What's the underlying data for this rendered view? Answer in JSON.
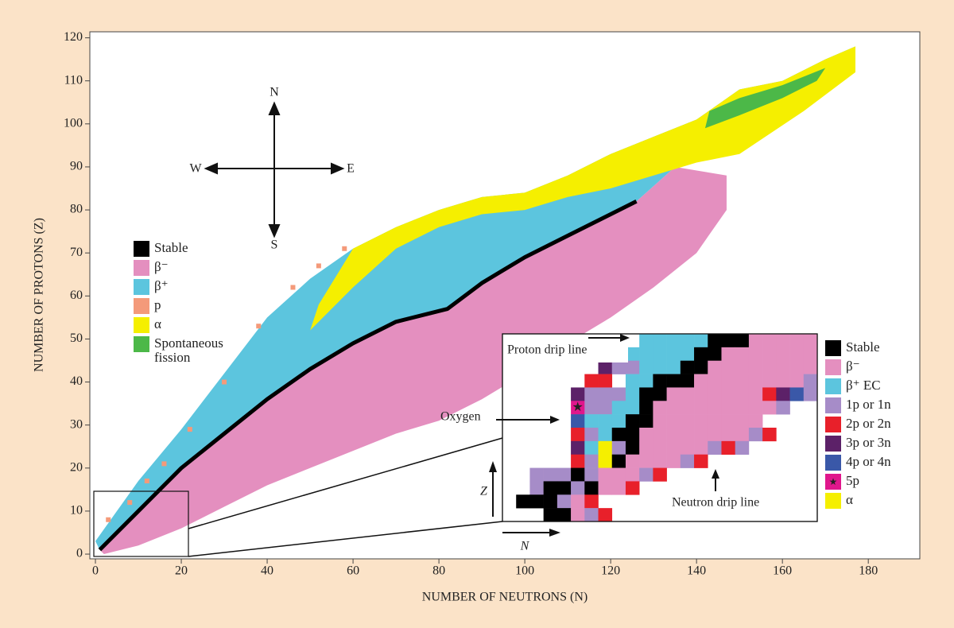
{
  "chart_data": {
    "type": "area",
    "xlabel": "NUMBER OF NEUTRONS (N)",
    "ylabel": "NUMBER OF PROTONS (Z)",
    "xlim": [
      -1.3,
      192
    ],
    "ylim": [
      -1.1,
      121.4
    ],
    "xticks": [
      0,
      20,
      40,
      60,
      80,
      100,
      120,
      140,
      160,
      180
    ],
    "yticks": [
      0,
      10,
      20,
      30,
      40,
      50,
      60,
      70,
      80,
      90,
      100,
      110,
      120
    ],
    "series": [
      {
        "name": "Stable",
        "color": "#000000",
        "style": "line",
        "x": [
          1,
          10,
          20,
          30,
          40,
          50,
          60,
          70,
          82,
          90,
          100,
          110,
          120,
          126
        ],
        "values": [
          1,
          10,
          20,
          28,
          36,
          43,
          49,
          54,
          57,
          63,
          69,
          74,
          79,
          82
        ]
      },
      {
        "name": "β⁻",
        "color": "#e48fbf",
        "style": "area",
        "x": [
          1,
          10,
          20,
          30,
          40,
          50,
          60,
          70,
          82,
          90,
          100,
          110,
          120,
          126,
          135,
          147,
          147,
          140,
          130,
          120,
          110,
          100,
          90,
          80,
          70,
          60,
          50,
          40,
          30,
          20,
          10,
          2
        ],
        "values": [
          1,
          10,
          20,
          28,
          36,
          43,
          49,
          54,
          57,
          63,
          69,
          74,
          79,
          82,
          90,
          88,
          80,
          70,
          62,
          55,
          49,
          42,
          36,
          31,
          28,
          24,
          20,
          16,
          11,
          6,
          2,
          0
        ]
      },
      {
        "name": "β⁺",
        "color": "#5cc5de",
        "style": "area",
        "x": [
          0,
          5,
          10,
          20,
          30,
          40,
          50,
          60,
          70,
          80,
          90,
          100,
          110,
          120,
          130,
          140,
          150,
          160,
          170,
          177,
          177,
          150,
          135,
          126,
          120,
          110,
          100,
          90,
          82,
          70,
          60,
          50,
          40,
          30,
          20,
          10,
          1
        ],
        "values": [
          3,
          10,
          17,
          29,
          42,
          55,
          64,
          71,
          76,
          80,
          83,
          84,
          88,
          93,
          97,
          101,
          108,
          110,
          115,
          118,
          114,
          98,
          90,
          82,
          79,
          74,
          69,
          63,
          57,
          54,
          49,
          43,
          36,
          28,
          20,
          10,
          1
        ]
      },
      {
        "name": "p",
        "color": "#f49a7a",
        "style": "cells",
        "x": [
          3,
          8,
          12,
          16,
          22,
          30,
          38,
          46,
          52,
          58
        ],
        "values": [
          8,
          12,
          17,
          21,
          29,
          40,
          53,
          62,
          67,
          71
        ]
      },
      {
        "name": "α",
        "color": "#f5ef00",
        "style": "area",
        "x": [
          50,
          60,
          70,
          80,
          90,
          100,
          110,
          120,
          130,
          140,
          150,
          165,
          177,
          177,
          170,
          160,
          150,
          140,
          130,
          120,
          110,
          100,
          90,
          80,
          70,
          60,
          52
        ],
        "values": [
          52,
          62,
          71,
          76,
          79,
          80,
          83,
          85,
          88,
          91,
          93,
          103,
          112,
          118,
          115,
          110,
          108,
          101,
          97,
          93,
          88,
          84,
          83,
          80,
          76,
          71,
          58
        ]
      },
      {
        "name": "Spontaneous fission",
        "color": "#4cb848",
        "style": "area",
        "x": [
          142,
          150,
          160,
          168,
          170,
          160,
          150,
          143
        ],
        "values": [
          99,
          102,
          106,
          110,
          113,
          109,
          106,
          103
        ]
      }
    ],
    "compass": {
      "north": "N",
      "south": "S",
      "east": "E",
      "west": "W"
    },
    "inset": {
      "proton_drip_line": "Proton drip line",
      "oxygen": "Oxygen",
      "neutron_drip_line": "Neutron drip line",
      "z_axis": "Z",
      "n_axis": "N",
      "legend": [
        {
          "label": "Stable",
          "color": "#000000"
        },
        {
          "label": "β⁻",
          "color": "#e48fbf"
        },
        {
          "label": "β⁺ EC",
          "color": "#5cc5de"
        },
        {
          "label": "1p or 1n",
          "color": "#a68cc8"
        },
        {
          "label": "2p or 2n",
          "color": "#e8202a"
        },
        {
          "label": "3p or 3n",
          "color": "#5c2168"
        },
        {
          "label": "4p or 4n",
          "color": "#3a58a8"
        },
        {
          "label": "5p",
          "color": "#e0178c"
        },
        {
          "label": "α",
          "color": "#f5ef00"
        }
      ]
    }
  }
}
